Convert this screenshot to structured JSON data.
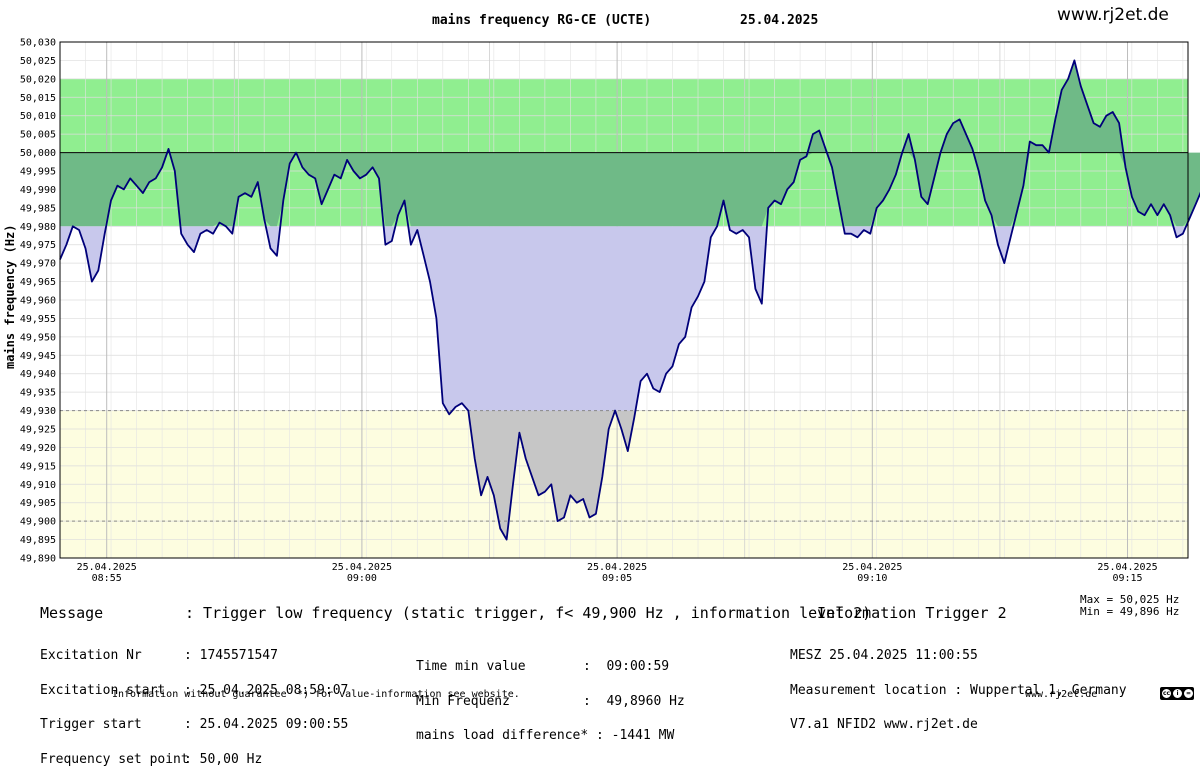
{
  "header": {
    "title": "mains frequency RG-CE (UCTE)",
    "date": "25.04.2025",
    "website": "www.rj2et.de"
  },
  "chart_data": {
    "type": "line",
    "ylabel": "mains frequency (Hz)",
    "ylim": [
      49.89,
      50.03
    ],
    "ytick_step": 0.005,
    "xlim_minutes": [
      0,
      44.2
    ],
    "x_ticks": [
      {
        "date": "25.04.2025",
        "time": "08:55"
      },
      {
        "date": "25.04.2025",
        "time": "09:00"
      },
      {
        "date": "25.04.2025",
        "time": "09:05"
      },
      {
        "date": "25.04.2025",
        "time": "09:10"
      },
      {
        "date": "25.04.2025",
        "time": "09:15"
      }
    ],
    "bands": {
      "green": [
        49.98,
        50.02
      ],
      "yellow": [
        49.89,
        49.93
      ],
      "nominal": 50.0,
      "dashed": [
        49.93,
        49.9
      ]
    },
    "colors": {
      "line": "#00007a",
      "green_band": "#90ee90",
      "yellow_band": "#fdfde0",
      "fill_above": "#6fba87",
      "fill_below": "#c8c8ec",
      "fill_below_yellow": "#c6c6c6"
    },
    "grid": true,
    "series": [
      {
        "x_start_time": "08:53:10",
        "x_step_seconds": 15,
        "values": [
          49.971,
          49.975,
          49.98,
          49.979,
          49.974,
          49.965,
          49.968,
          49.978,
          49.987,
          49.991,
          49.99,
          49.993,
          49.991,
          49.989,
          49.992,
          49.993,
          49.996,
          50.001,
          49.995,
          49.978,
          49.975,
          49.973,
          49.978,
          49.979,
          49.978,
          49.981,
          49.98,
          49.978,
          49.988,
          49.989,
          49.988,
          49.992,
          49.982,
          49.974,
          49.972,
          49.987,
          49.997,
          50.0,
          49.996,
          49.994,
          49.993,
          49.986,
          49.99,
          49.994,
          49.993,
          49.998,
          49.995,
          49.993,
          49.994,
          49.996,
          49.993,
          49.975,
          49.976,
          49.983,
          49.987,
          49.975,
          49.979,
          49.972,
          49.965,
          49.955,
          49.932,
          49.929,
          49.931,
          49.932,
          49.93,
          49.917,
          49.907,
          49.912,
          49.907,
          49.898,
          49.895,
          49.91,
          49.924,
          49.917,
          49.912,
          49.907,
          49.908,
          49.91,
          49.9,
          49.901,
          49.907,
          49.905,
          49.906,
          49.901,
          49.902,
          49.912,
          49.925,
          49.93,
          49.925,
          49.919,
          49.928,
          49.938,
          49.94,
          49.936,
          49.935,
          49.94,
          49.942,
          49.948,
          49.95,
          49.958,
          49.961,
          49.965,
          49.977,
          49.98,
          49.987,
          49.979,
          49.978,
          49.979,
          49.977,
          49.963,
          49.959,
          49.985,
          49.987,
          49.986,
          49.99,
          49.992,
          49.998,
          49.999,
          50.005,
          50.006,
          50.001,
          49.996,
          49.987,
          49.978,
          49.978,
          49.977,
          49.979,
          49.978,
          49.985,
          49.987,
          49.99,
          49.994,
          50.0,
          50.005,
          49.998,
          49.988,
          49.986,
          49.993,
          50.0,
          50.005,
          50.008,
          50.009,
          50.005,
          50.001,
          49.995,
          49.987,
          49.983,
          49.975,
          49.97,
          49.977,
          49.984,
          49.991,
          50.003,
          50.002,
          50.002,
          50.0,
          50.009,
          50.017,
          50.02,
          50.025,
          50.018,
          50.013,
          50.008,
          50.007,
          50.01,
          50.011,
          50.008,
          49.996,
          49.988,
          49.984,
          49.983,
          49.986,
          49.983,
          49.986,
          49.983,
          49.977,
          49.978,
          49.982,
          49.986,
          49.99,
          49.994,
          50.0,
          49.996,
          49.994,
          49.998,
          50.002,
          49.994,
          49.988,
          49.981,
          49.979,
          49.98,
          49.984,
          49.992,
          49.99,
          49.988,
          49.991,
          49.998,
          50.002,
          49.997,
          49.994,
          49.992,
          49.99,
          49.989,
          49.991,
          49.994,
          49.996,
          49.995,
          49.992,
          49.989,
          49.995,
          49.999,
          50.005,
          50.012,
          50.005,
          50.012,
          50.003,
          49.99,
          49.994,
          50.002,
          50.008,
          50.009,
          50.006,
          50.011,
          50.012
        ]
      }
    ],
    "summary": {
      "max": "Max = 50,025 Hz",
      "min": "Min = 49,896 Hz"
    }
  },
  "message": {
    "label": "Message",
    "text": ": Trigger low frequency (static trigger, f< 49,900 Hz , information level 2)",
    "trigger": "Information Trigger 2"
  },
  "info": {
    "col1": [
      {
        "label": "Excitation Nr",
        "value": ": 1745571547"
      },
      {
        "label": "Excitation start",
        "value": ": 25.04.2025 08:59:07"
      },
      {
        "label": "Trigger start",
        "value": ": 25.04.2025 09:00:55"
      },
      {
        "label": "Frequency set point",
        "value": ": 50,00 Hz"
      }
    ],
    "col2": [
      {
        "label": "Time min value",
        "value": ":  09:00:59"
      },
      {
        "label": "Min Frequenz",
        "value": ":  49,8960 Hz"
      },
      {
        "label": "mains load difference*",
        "value": ": -1441 MW"
      }
    ],
    "col3": [
      "MESZ 25.04.2025 11:00:55",
      "Measurement location : Wuppertal 1, Germany",
      "V7.a1 NFID2 www.rj2et.de"
    ]
  },
  "footer": {
    "disclaimer": "Information without guarantee",
    "note": "*) for value-information see website.",
    "website": "www.rj2et.de"
  }
}
